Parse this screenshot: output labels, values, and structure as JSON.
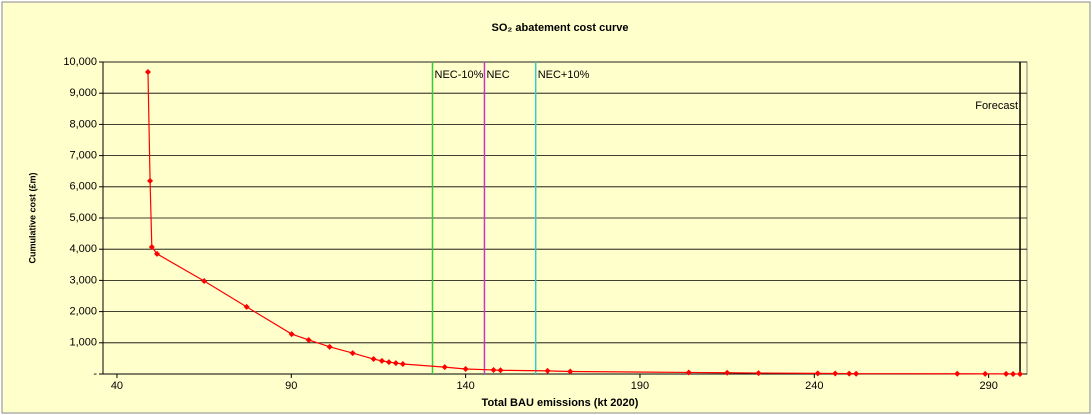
{
  "chart_data": {
    "type": "line",
    "title": "SO₂ abatement cost curve",
    "x_label": "Total BAU emissions (kt 2020)",
    "y_label": "Cumulative cost (£m)",
    "series": [
      {
        "name": "Cumulative cost",
        "color": "#ff0000",
        "x": [
          48.9,
          49.5,
          50.0,
          51.5,
          65,
          77.2,
          90.1,
          95,
          101,
          107.6,
          113.6,
          116,
          118,
          120,
          122,
          134,
          140,
          148,
          150,
          163.5,
          170,
          204,
          215,
          224,
          241,
          246,
          250,
          252,
          281,
          289,
          295,
          297,
          299
        ],
        "values": [
          9680,
          6190,
          4070,
          3850,
          2980,
          2150,
          1280,
          1090,
          870,
          670,
          480,
          420,
          380,
          350,
          320,
          220,
          160,
          130,
          120,
          100,
          80,
          50,
          40,
          30,
          20,
          15,
          12,
          10,
          8,
          5,
          3,
          2,
          1
        ]
      }
    ],
    "reference_lines": [
      {
        "label": "NEC-10%",
        "x": 130.5,
        "color": "#33cc33"
      },
      {
        "label": "NEC",
        "x": 145.4,
        "color": "#cc33cc"
      },
      {
        "label": "NEC+10%",
        "x": 160.1,
        "color": "#33cccc"
      },
      {
        "label": "Forecast",
        "x": 299,
        "color": "#000000"
      }
    ],
    "xlim": [
      36,
      301
    ],
    "xticks": [
      40,
      90,
      140,
      190,
      240,
      290
    ],
    "ylim": [
      0,
      10000
    ],
    "yticks": [
      {
        "value": 0,
        "label": "-"
      },
      {
        "value": 1000,
        "label": "1,000"
      },
      {
        "value": 2000,
        "label": "2,000"
      },
      {
        "value": 3000,
        "label": "3,000"
      },
      {
        "value": 4000,
        "label": "4,000"
      },
      {
        "value": 5000,
        "label": "5,000"
      },
      {
        "value": 6000,
        "label": "6,000"
      },
      {
        "value": 7000,
        "label": "7,000"
      },
      {
        "value": 8000,
        "label": "8,000"
      },
      {
        "value": 9000,
        "label": "9,000"
      },
      {
        "value": 10000,
        "label": "10,000"
      }
    ],
    "grid": true
  }
}
